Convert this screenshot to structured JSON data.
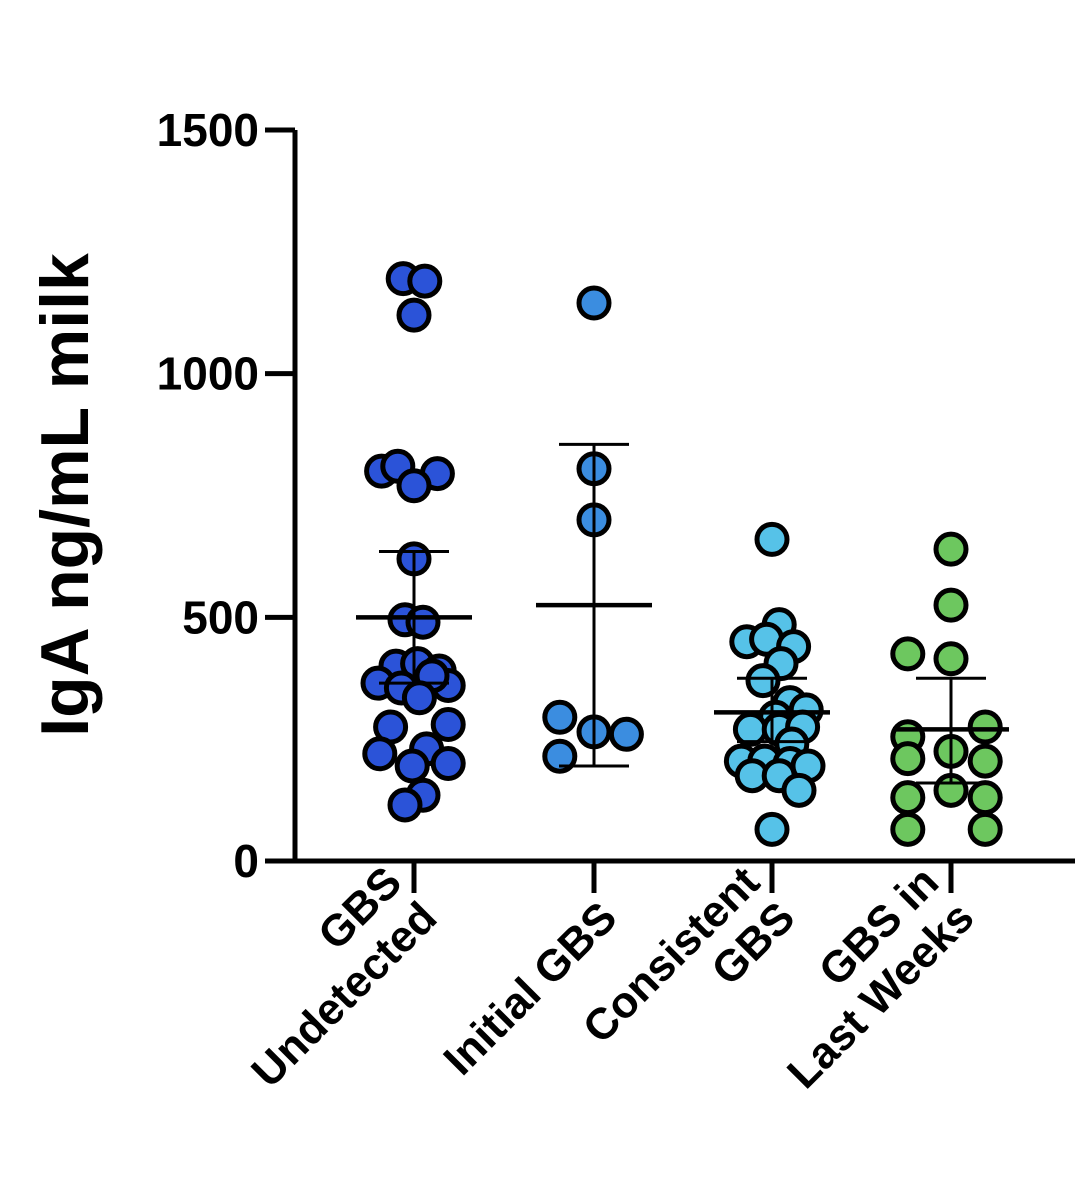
{
  "chart_data": {
    "type": "scatter",
    "ylabel": "IgA ng/mL milk",
    "ylim": [
      0,
      1500
    ],
    "yticks": [
      0,
      500,
      1000,
      1500
    ],
    "grid": false,
    "legend": "none",
    "categories": [
      {
        "lines": [
          "GBS",
          "Undetected"
        ]
      },
      {
        "lines": [
          "Initial GBS"
        ]
      },
      {
        "lines": [
          "Consistent",
          "GBS"
        ]
      },
      {
        "lines": [
          "GBS in",
          "Last Weeks"
        ]
      }
    ],
    "groups": [
      {
        "color": "#2b53d8",
        "mean": 500,
        "err_low": 365,
        "err_high": 635,
        "points": [
          {
            "pos": -0.06,
            "y": 1195
          },
          {
            "pos": 0.06,
            "y": 1190
          },
          {
            "pos": 0,
            "y": 1120
          },
          {
            "pos": -0.18,
            "y": 800
          },
          {
            "pos": -0.09,
            "y": 810
          },
          {
            "pos": 0.13,
            "y": 795
          },
          {
            "pos": 0,
            "y": 770
          },
          {
            "pos": 0,
            "y": 620
          },
          {
            "pos": -0.05,
            "y": 495
          },
          {
            "pos": 0.05,
            "y": 490
          },
          {
            "pos": -0.1,
            "y": 400
          },
          {
            "pos": 0.02,
            "y": 405
          },
          {
            "pos": 0.14,
            "y": 390
          },
          {
            "pos": -0.2,
            "y": 365
          },
          {
            "pos": -0.07,
            "y": 355
          },
          {
            "pos": 0.19,
            "y": 360
          },
          {
            "pos": 0.1,
            "y": 380
          },
          {
            "pos": 0.03,
            "y": 335
          },
          {
            "pos": -0.13,
            "y": 275
          },
          {
            "pos": 0.19,
            "y": 280
          },
          {
            "pos": -0.19,
            "y": 220
          },
          {
            "pos": 0.07,
            "y": 230
          },
          {
            "pos": 0.19,
            "y": 200
          },
          {
            "pos": -0.01,
            "y": 195
          },
          {
            "pos": 0.05,
            "y": 135
          },
          {
            "pos": -0.05,
            "y": 115
          }
        ]
      },
      {
        "color": "#3b8de0",
        "mean": 525,
        "err_low": 195,
        "err_high": 855,
        "points": [
          {
            "pos": 0,
            "y": 1145
          },
          {
            "pos": 0,
            "y": 805
          },
          {
            "pos": 0,
            "y": 700
          },
          {
            "pos": -0.19,
            "y": 295
          },
          {
            "pos": 0,
            "y": 265
          },
          {
            "pos": 0.18,
            "y": 260
          },
          {
            "pos": -0.19,
            "y": 215
          }
        ]
      },
      {
        "color": "#56c2e8",
        "mean": 305,
        "err_low": 245,
        "err_high": 375,
        "points": [
          {
            "pos": 0,
            "y": 660
          },
          {
            "pos": 0.04,
            "y": 485
          },
          {
            "pos": -0.14,
            "y": 450
          },
          {
            "pos": -0.03,
            "y": 455
          },
          {
            "pos": 0.12,
            "y": 440
          },
          {
            "pos": 0.05,
            "y": 405
          },
          {
            "pos": -0.05,
            "y": 370
          },
          {
            "pos": 0.1,
            "y": 325
          },
          {
            "pos": 0.19,
            "y": 310
          },
          {
            "pos": 0.02,
            "y": 295
          },
          {
            "pos": -0.12,
            "y": 270
          },
          {
            "pos": 0.04,
            "y": 270
          },
          {
            "pos": 0.17,
            "y": 275
          },
          {
            "pos": 0.11,
            "y": 240
          },
          {
            "pos": -0.17,
            "y": 205
          },
          {
            "pos": -0.04,
            "y": 205
          },
          {
            "pos": 0.1,
            "y": 200
          },
          {
            "pos": 0.2,
            "y": 195
          },
          {
            "pos": -0.11,
            "y": 175
          },
          {
            "pos": 0.04,
            "y": 175
          },
          {
            "pos": 0.15,
            "y": 145
          },
          {
            "pos": 0,
            "y": 65
          }
        ]
      },
      {
        "color": "#6dc75f",
        "mean": 270,
        "err_low": 160,
        "err_high": 375,
        "points": [
          {
            "pos": 0,
            "y": 640
          },
          {
            "pos": 0,
            "y": 525
          },
          {
            "pos": -0.24,
            "y": 425
          },
          {
            "pos": 0,
            "y": 415
          },
          {
            "pos": 0.19,
            "y": 275
          },
          {
            "pos": -0.24,
            "y": 255
          },
          {
            "pos": 0,
            "y": 225
          },
          {
            "pos": -0.24,
            "y": 210
          },
          {
            "pos": 0.19,
            "y": 205
          },
          {
            "pos": 0,
            "y": 145
          },
          {
            "pos": -0.24,
            "y": 130
          },
          {
            "pos": 0.19,
            "y": 130
          },
          {
            "pos": -0.24,
            "y": 65
          },
          {
            "pos": 0.19,
            "y": 65
          }
        ]
      }
    ]
  }
}
